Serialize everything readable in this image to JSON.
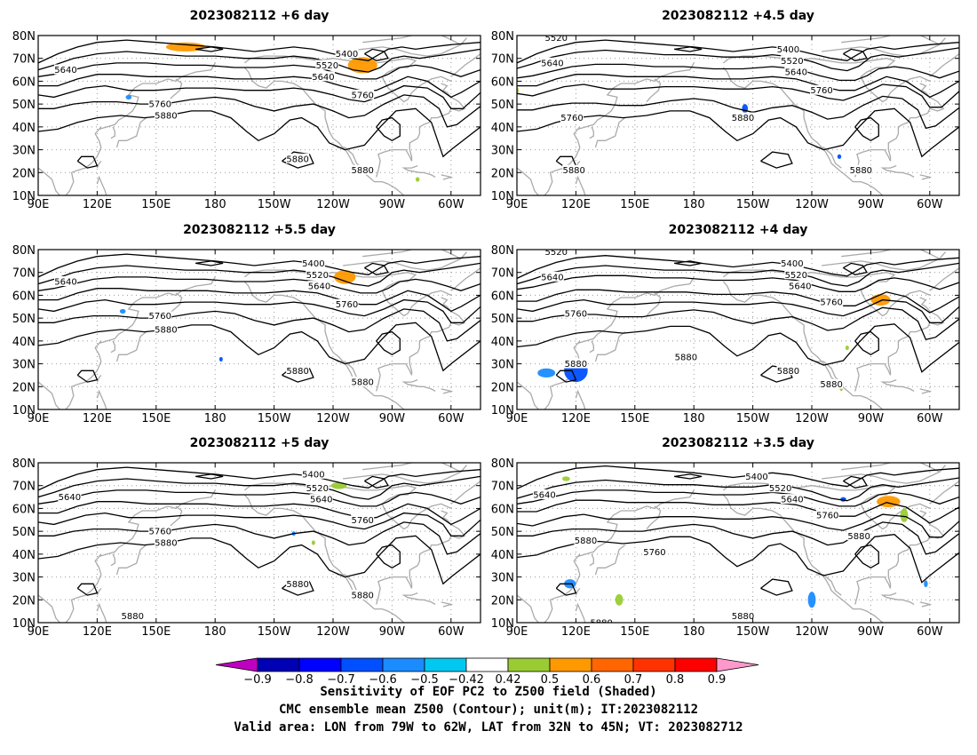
{
  "panels": [
    {
      "title": "2023082112 +6 day",
      "contour_labels": [
        {
          "text": "5400",
          "lon": 247,
          "lat": 72
        },
        {
          "text": "5520",
          "lon": 237,
          "lat": 67
        },
        {
          "text": "5640",
          "lon": 235,
          "lat": 62
        },
        {
          "text": "5640",
          "lon": 104,
          "lat": 65
        },
        {
          "text": "5760",
          "lon": 152,
          "lat": 50
        },
        {
          "text": "5880",
          "lon": 155,
          "lat": 45
        },
        {
          "text": "5760",
          "lon": 255,
          "lat": 54
        },
        {
          "text": "5880",
          "lon": 222,
          "lat": 26
        },
        {
          "text": "5880",
          "lon": 255,
          "lat": 21
        }
      ],
      "shading": [
        {
          "lon": 165,
          "lat": 75,
          "w": 20,
          "h": 4,
          "value": 0.6
        },
        {
          "lon": 255,
          "lat": 67,
          "w": 15,
          "h": 7,
          "value": 0.6
        },
        {
          "lon": 136,
          "lat": 53,
          "w": 3,
          "h": 2,
          "value": -0.5
        },
        {
          "lon": 283,
          "lat": 17,
          "w": 2,
          "h": 2,
          "value": 0.5
        }
      ]
    },
    {
      "title": "2023082112 +4.5 day",
      "contour_labels": [
        {
          "text": "5520",
          "lon": 110,
          "lat": 79
        },
        {
          "text": "5640",
          "lon": 108,
          "lat": 68
        },
        {
          "text": "5400",
          "lon": 228,
          "lat": 74
        },
        {
          "text": "5520",
          "lon": 230,
          "lat": 69
        },
        {
          "text": "5640",
          "lon": 232,
          "lat": 64
        },
        {
          "text": "5760",
          "lon": 245,
          "lat": 56
        },
        {
          "text": "5760",
          "lon": 118,
          "lat": 44
        },
        {
          "text": "5880",
          "lon": 205,
          "lat": 44
        },
        {
          "text": "5880",
          "lon": 119,
          "lat": 21
        },
        {
          "text": "5880",
          "lon": 265,
          "lat": 21
        }
      ],
      "shading": [
        {
          "lon": 206,
          "lat": 48,
          "w": 3,
          "h": 4,
          "value": -0.6
        },
        {
          "lon": 90,
          "lat": 56,
          "w": 1,
          "h": 3,
          "value": 0.5
        },
        {
          "lon": 254,
          "lat": 27,
          "w": 2,
          "h": 2,
          "value": -0.6
        }
      ]
    },
    {
      "title": "2023082112 +5.5 day",
      "contour_labels": [
        {
          "text": "5400",
          "lon": 230,
          "lat": 74
        },
        {
          "text": "5520",
          "lon": 232,
          "lat": 69
        },
        {
          "text": "5640",
          "lon": 233,
          "lat": 64
        },
        {
          "text": "5640",
          "lon": 104,
          "lat": 66
        },
        {
          "text": "5760",
          "lon": 152,
          "lat": 51
        },
        {
          "text": "5880",
          "lon": 155,
          "lat": 45
        },
        {
          "text": "5760",
          "lon": 247,
          "lat": 56
        },
        {
          "text": "5880",
          "lon": 222,
          "lat": 27
        },
        {
          "text": "5880",
          "lon": 255,
          "lat": 22
        }
      ],
      "shading": [
        {
          "lon": 246,
          "lat": 68,
          "w": 11,
          "h": 6,
          "value": 0.6
        },
        {
          "lon": 133,
          "lat": 53,
          "w": 3,
          "h": 2,
          "value": -0.5
        },
        {
          "lon": 183,
          "lat": 32,
          "w": 1,
          "h": 2,
          "value": -0.6
        }
      ]
    },
    {
      "title": "2023082112 +4 day",
      "contour_labels": [
        {
          "text": "5520",
          "lon": 110,
          "lat": 79
        },
        {
          "text": "5640",
          "lon": 108,
          "lat": 68
        },
        {
          "text": "5400",
          "lon": 230,
          "lat": 74
        },
        {
          "text": "5520",
          "lon": 232,
          "lat": 69
        },
        {
          "text": "5640",
          "lon": 234,
          "lat": 64
        },
        {
          "text": "5760",
          "lon": 120,
          "lat": 52
        },
        {
          "text": "5760",
          "lon": 250,
          "lat": 57
        },
        {
          "text": "5880",
          "lon": 120,
          "lat": 30
        },
        {
          "text": "5880",
          "lon": 176,
          "lat": 33
        },
        {
          "text": "5880",
          "lon": 228,
          "lat": 27
        },
        {
          "text": "5880",
          "lon": 250,
          "lat": 21
        }
      ],
      "shading": [
        {
          "lon": 120,
          "lat": 27,
          "w": 12,
          "h": 10,
          "value": -0.6
        },
        {
          "lon": 105,
          "lat": 26,
          "w": 9,
          "h": 4,
          "value": -0.5
        },
        {
          "lon": 275,
          "lat": 58,
          "w": 10,
          "h": 5,
          "value": 0.6
        },
        {
          "lon": 255,
          "lat": 20,
          "w": 2,
          "h": 4,
          "value": 0.5
        },
        {
          "lon": 258,
          "lat": 37,
          "w": 1,
          "h": 2,
          "value": 0.5
        }
      ]
    },
    {
      "title": "2023082112 +5 day",
      "contour_labels": [
        {
          "text": "5400",
          "lon": 230,
          "lat": 75
        },
        {
          "text": "5520",
          "lon": 232,
          "lat": 69
        },
        {
          "text": "5640",
          "lon": 234,
          "lat": 64
        },
        {
          "text": "5640",
          "lon": 106,
          "lat": 65
        },
        {
          "text": "5760",
          "lon": 152,
          "lat": 50
        },
        {
          "text": "5880",
          "lon": 155,
          "lat": 45
        },
        {
          "text": "5760",
          "lon": 255,
          "lat": 55
        },
        {
          "text": "5880",
          "lon": 222,
          "lat": 27
        },
        {
          "text": "5880",
          "lon": 255,
          "lat": 22
        },
        {
          "text": "5880",
          "lon": 138,
          "lat": 13
        }
      ],
      "shading": [
        {
          "lon": 243,
          "lat": 70,
          "w": 8,
          "h": 3,
          "value": 0.5
        },
        {
          "lon": 220,
          "lat": 49,
          "w": 1,
          "h": 2,
          "value": -0.5
        },
        {
          "lon": 230,
          "lat": 45,
          "w": 1,
          "h": 2,
          "value": 0.5
        }
      ]
    },
    {
      "title": "2023082112 +3.5 day",
      "contour_labels": [
        {
          "text": "5400",
          "lon": 212,
          "lat": 74
        },
        {
          "text": "5520",
          "lon": 224,
          "lat": 69
        },
        {
          "text": "5640",
          "lon": 230,
          "lat": 64
        },
        {
          "text": "5640",
          "lon": 104,
          "lat": 66
        },
        {
          "text": "5760",
          "lon": 248,
          "lat": 57
        },
        {
          "text": "5880",
          "lon": 125,
          "lat": 46
        },
        {
          "text": "5760",
          "lon": 160,
          "lat": 41
        },
        {
          "text": "5880",
          "lon": 264,
          "lat": 48
        },
        {
          "text": "5880",
          "lon": 205,
          "lat": 13
        },
        {
          "text": "5880",
          "lon": 133,
          "lat": 10
        }
      ],
      "shading": [
        {
          "lon": 279,
          "lat": 63,
          "w": 12,
          "h": 5,
          "value": 0.6
        },
        {
          "lon": 287,
          "lat": 57,
          "w": 4,
          "h": 6,
          "value": 0.5
        },
        {
          "lon": 117,
          "lat": 27,
          "w": 6,
          "h": 4,
          "value": -0.5
        },
        {
          "lon": 142,
          "lat": 20,
          "w": 4,
          "h": 5,
          "value": 0.5
        },
        {
          "lon": 240,
          "lat": 20,
          "w": 4,
          "h": 7,
          "value": -0.5
        },
        {
          "lon": 256,
          "lat": 64,
          "w": 3,
          "h": 2,
          "value": -0.6
        },
        {
          "lon": 115,
          "lat": 73,
          "w": 4,
          "h": 2,
          "value": 0.5
        },
        {
          "lon": 298,
          "lat": 27,
          "w": 2,
          "h": 3,
          "value": -0.5
        }
      ]
    }
  ],
  "axes": {
    "x_ticks": [
      "90E",
      "120E",
      "150E",
      "180",
      "150W",
      "120W",
      "90W",
      "60W"
    ],
    "y_ticks": [
      "80N",
      "70N",
      "60N",
      "50N",
      "40N",
      "30N",
      "20N",
      "10N"
    ],
    "lon_range": [
      90,
      315
    ],
    "lat_range": [
      10,
      80
    ]
  },
  "colorbar": {
    "tick_labels": [
      "−0.9",
      "−0.8",
      "−0.7",
      "−0.6",
      "−0.5",
      "−0.42",
      "0.42",
      "0.5",
      "0.6",
      "0.7",
      "0.8",
      "0.9"
    ],
    "colors": [
      "#c000c0",
      "#0000b4",
      "#0000ff",
      "#0050ff",
      "#1a8cff",
      "#00c8f0",
      "#ffffff",
      "#99cc33",
      "#ff9900",
      "#ff6600",
      "#ff3300",
      "#ff0000",
      "#ff99cc"
    ]
  },
  "caption": [
    "Sensitivity of EOF PC2 to Z500 field (Shaded)",
    "CMC ensemble mean Z500 (Contour); unit(m); IT:2023082112",
    "Valid area: LON from 79W to 62W, LAT from 32N to 45N; VT: 2023082712"
  ]
}
